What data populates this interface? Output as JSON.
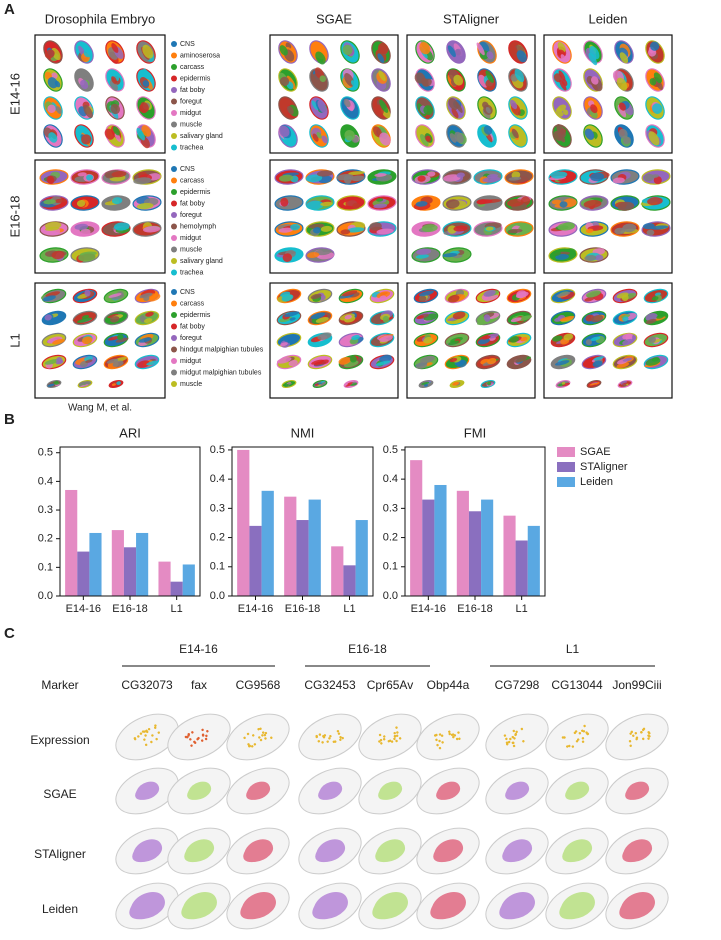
{
  "panel_a": {
    "label": "A",
    "columns": [
      "Drosophila Embryo",
      "SGAE",
      "STAligner",
      "Leiden"
    ],
    "rows": [
      {
        "label": "E14-16",
        "legend": [
          "CNS",
          "aminoserosa",
          "carcass",
          "epidermis",
          "fat boby",
          "foregut",
          "midgut",
          "muscle",
          "salivary gland",
          "trachea"
        ]
      },
      {
        "label": "E16-18",
        "legend": [
          "CNS",
          "carcass",
          "epidermis",
          "fat boby",
          "foregut",
          "hemolymph",
          "midgut",
          "muscle",
          "salivary gland",
          "trachea"
        ]
      },
      {
        "label": "L1",
        "legend": [
          "CNS",
          "carcass",
          "epidermis",
          "fat boby",
          "foregut",
          "hindgut malpighian tubules",
          "midgut",
          "midgut malpighian tubules",
          "muscle"
        ]
      }
    ],
    "credit": "Wang M, et al."
  },
  "panel_b": {
    "label": "B"
  },
  "chart_data": [
    {
      "type": "bar",
      "title": "ARI",
      "categories": [
        "E14-16",
        "E16-18",
        "L1"
      ],
      "series": [
        {
          "color": "#e48bc3",
          "values": [
            0.37,
            0.23,
            0.12
          ]
        },
        {
          "color": "#8a6fbf",
          "values": [
            0.155,
            0.17,
            0.05
          ]
        },
        {
          "color": "#5aa8e2",
          "values": [
            0.22,
            0.22,
            0.11
          ]
        }
      ],
      "ylim": [
        0,
        0.52
      ],
      "yticks": [
        {
          "value": 0,
          "label": "0.0"
        },
        0.1,
        0.2,
        0.3,
        0.4,
        0.5
      ]
    },
    {
      "type": "bar",
      "title": "NMI",
      "categories": [
        "E14-16",
        "E16-18",
        "L1"
      ],
      "series": [
        {
          "color": "#e48bc3",
          "values": [
            0.5,
            0.34,
            0.17
          ]
        },
        {
          "color": "#8a6fbf",
          "values": [
            0.24,
            0.26,
            0.105
          ]
        },
        {
          "color": "#5aa8e2",
          "values": [
            0.36,
            0.33,
            0.26
          ]
        }
      ],
      "ylim": [
        0,
        0.51
      ],
      "yticks": [
        {
          "value": 0,
          "label": "0.0"
        },
        0.1,
        0.2,
        0.3,
        0.4,
        0.5
      ]
    },
    {
      "type": "bar",
      "title": "FMI",
      "categories": [
        "E14-16",
        "E16-18",
        "L1"
      ],
      "series": [
        {
          "name": "SGAE",
          "color": "#e48bc3",
          "values": [
            0.465,
            0.36,
            0.275
          ]
        },
        {
          "name": "STAligner",
          "color": "#8a6fbf",
          "values": [
            0.33,
            0.29,
            0.19
          ]
        },
        {
          "name": "Leiden",
          "color": "#5aa8e2",
          "values": [
            0.38,
            0.33,
            0.24
          ]
        }
      ],
      "ylim": [
        0,
        0.51
      ],
      "yticks": [
        {
          "value": 0,
          "label": "0.0"
        },
        0.1,
        0.2,
        0.3,
        0.4,
        0.5
      ]
    }
  ],
  "panel_c": {
    "label": "C",
    "groups": [
      "E14-16",
      "E16-18",
      "L1"
    ],
    "marker_header": "Marker",
    "markers": [
      "CG32073",
      "fax",
      "CG9568",
      "CG32453",
      "Cpr65Av",
      "Obp44a",
      "CG7298",
      "CG13044",
      "Jon99Ciii"
    ],
    "rows": [
      "Expression",
      "SGAE",
      "STAligner",
      "Leiden"
    ]
  }
}
